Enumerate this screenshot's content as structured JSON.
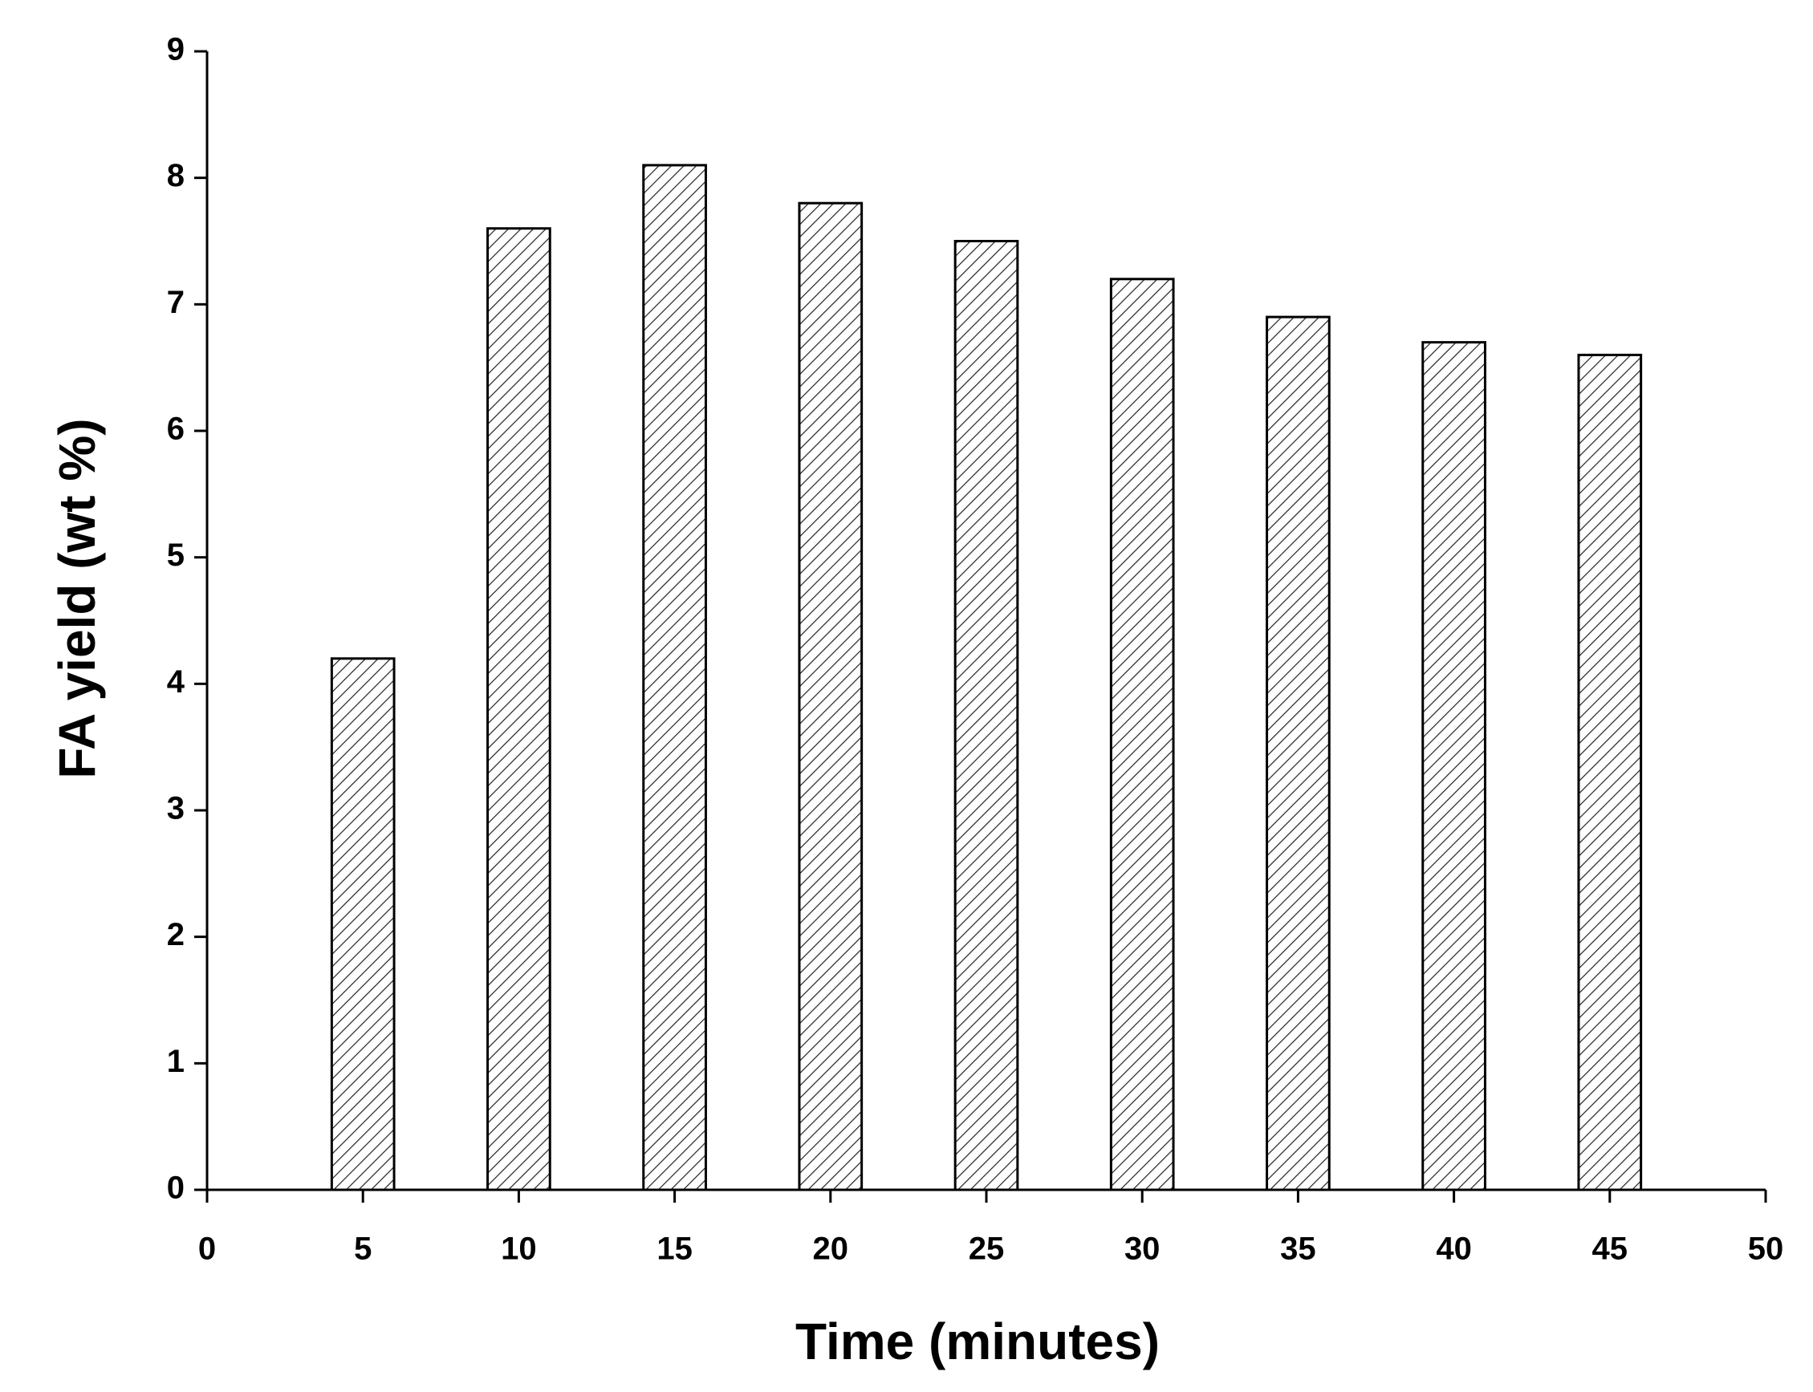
{
  "chart_data": {
    "type": "bar",
    "x_label": "Time (minutes)",
    "y_label": "FA yield (wt %)",
    "x": [
      5,
      10,
      15,
      20,
      25,
      30,
      35,
      40,
      45
    ],
    "values": [
      4.2,
      7.6,
      8.1,
      7.8,
      7.5,
      7.2,
      6.9,
      6.7,
      6.6
    ],
    "color": "#000000",
    "xlim": [
      0,
      50
    ],
    "xticks": [
      0,
      5,
      10,
      15,
      20,
      25,
      30,
      35,
      40,
      45,
      50
    ],
    "ylim": [
      0,
      9
    ],
    "yticks": [
      0,
      1,
      2,
      3,
      4,
      5,
      6,
      7,
      8,
      9
    ],
    "grid": false
  }
}
